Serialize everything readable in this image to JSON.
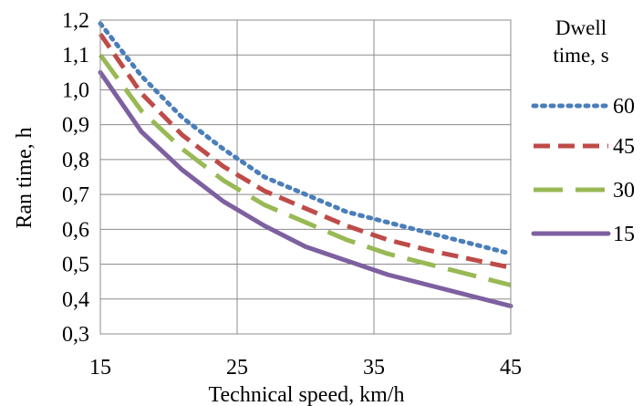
{
  "chart_data": {
    "type": "line",
    "title": "",
    "xlabel": "Technical speed, km/h",
    "ylabel": "Ran time, h",
    "xlim": [
      15,
      45
    ],
    "ylim": [
      0.3,
      1.2
    ],
    "x_ticks": [
      15,
      25,
      35,
      45
    ],
    "x_tick_labels": [
      "15",
      "25",
      "35",
      "45"
    ],
    "y_ticks": [
      0.3,
      0.4,
      0.5,
      0.6,
      0.7,
      0.8,
      0.9,
      1.0,
      1.1,
      1.2
    ],
    "y_tick_labels": [
      "0,3",
      "0,4",
      "0,5",
      "0,6",
      "0,7",
      "0,8",
      "0,9",
      "1,0",
      "1,1",
      "1,2"
    ],
    "grid": true,
    "legend_title": "Dwell time, s",
    "legend_position": "right",
    "x": [
      15,
      18,
      21,
      24,
      27,
      30,
      33,
      36,
      39,
      42,
      45
    ],
    "series": [
      {
        "name": "60",
        "color": "#4a7ebb",
        "style": "dotted",
        "values": [
          1.19,
          1.04,
          0.92,
          0.83,
          0.75,
          0.7,
          0.65,
          0.62,
          0.59,
          0.56,
          0.53
        ]
      },
      {
        "name": "45",
        "color": "#be4b48",
        "style": "dashed",
        "values": [
          1.16,
          0.99,
          0.87,
          0.78,
          0.71,
          0.66,
          0.61,
          0.57,
          0.54,
          0.515,
          0.49
        ]
      },
      {
        "name": "30",
        "color": "#98b954",
        "style": "long-dashed",
        "values": [
          1.1,
          0.94,
          0.83,
          0.74,
          0.67,
          0.62,
          0.57,
          0.53,
          0.5,
          0.47,
          0.44
        ]
      },
      {
        "name": "15",
        "color": "#7d60a0",
        "style": "solid",
        "values": [
          1.05,
          0.88,
          0.77,
          0.68,
          0.61,
          0.55,
          0.51,
          0.47,
          0.44,
          0.41,
          0.38
        ]
      }
    ]
  }
}
